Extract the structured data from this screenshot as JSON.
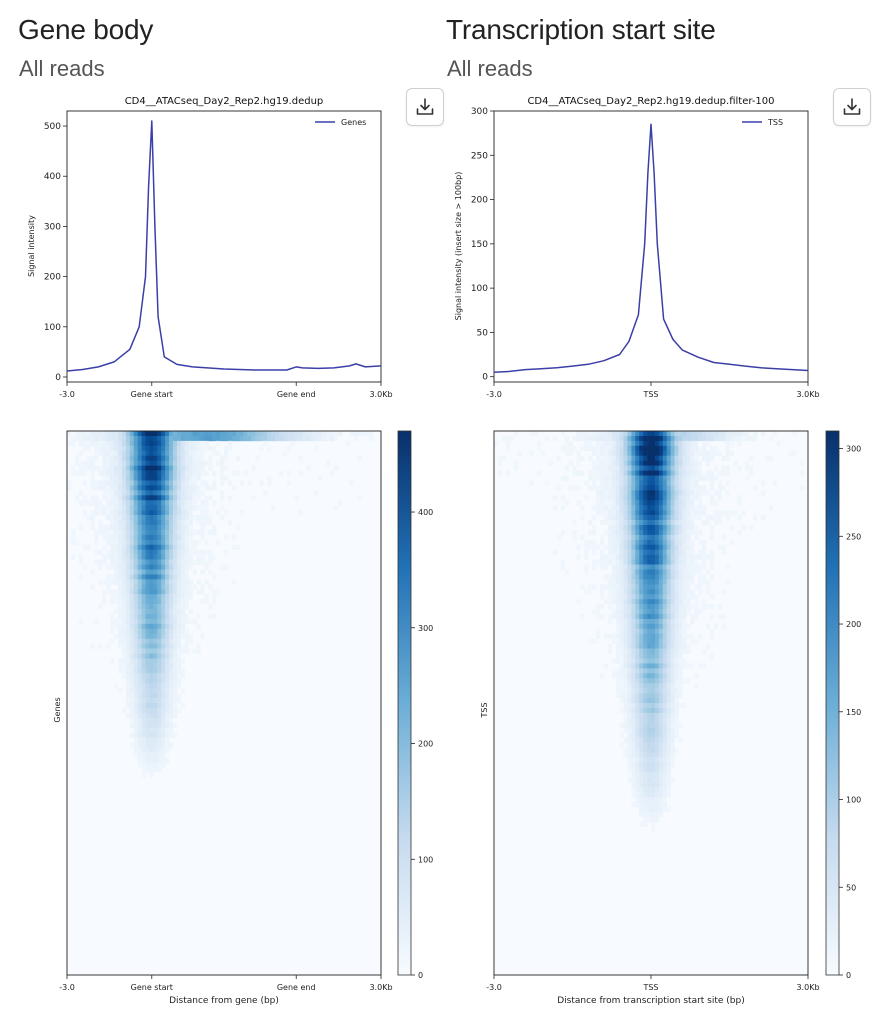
{
  "panels": [
    {
      "title": "Gene body",
      "subtitle": "All reads",
      "download_icon": "download-tray-icon",
      "profile": {
        "title": "CD4__ATACseq_Day2_Rep2.hg19.dedup",
        "ylabel": "Signal intensity",
        "legend": "Genes",
        "ylim": [
          -10,
          530
        ],
        "yticks": [
          "0",
          "100",
          "200",
          "300",
          "400",
          "500"
        ],
        "ytick_values": [
          0,
          100,
          200,
          300,
          400,
          500
        ],
        "xtick_labels": [
          "-3.0",
          "Gene start",
          "Gene end",
          "3.0Kb"
        ],
        "xtick_positions": [
          0,
          0.27,
          0.73,
          1.0
        ],
        "series_color": "#3b3fa8",
        "x": [
          0,
          0.05,
          0.1,
          0.15,
          0.2,
          0.23,
          0.25,
          0.26,
          0.27,
          0.28,
          0.29,
          0.31,
          0.35,
          0.4,
          0.5,
          0.6,
          0.7,
          0.73,
          0.75,
          0.8,
          0.85,
          0.9,
          0.92,
          0.95,
          1.0
        ],
        "y": [
          12,
          15,
          20,
          30,
          55,
          100,
          200,
          380,
          510,
          300,
          120,
          40,
          25,
          20,
          16,
          14,
          14,
          20,
          18,
          17,
          18,
          22,
          26,
          20,
          22
        ]
      },
      "heatmap": {
        "ylabel": "Genes",
        "xlabel": "Distance from gene (bp)",
        "xtick_labels": [
          "-3.0",
          "Gene start",
          "Gene end",
          "3.0Kb"
        ],
        "xtick_positions": [
          0,
          0.27,
          0.73,
          1.0
        ],
        "colorbar_ticks": [
          "0",
          "100",
          "200",
          "300",
          "400"
        ],
        "colorbar_values": [
          0,
          100,
          200,
          300,
          400
        ],
        "colorbar_max": 470,
        "peak_center": 0.27,
        "color_dark": "#08306b",
        "color_light": "#f7fbff"
      }
    },
    {
      "title": "Transcription start site",
      "subtitle": "All reads",
      "download_icon": "download-tray-icon",
      "profile": {
        "title": "CD4__ATACseq_Day2_Rep2.hg19.dedup.filter-100",
        "ylabel": "Signal intensity (insert size > 100bp)",
        "legend": "TSS",
        "ylim": [
          -6,
          300
        ],
        "yticks": [
          "0",
          "50",
          "100",
          "150",
          "200",
          "250",
          "300"
        ],
        "ytick_values": [
          0,
          50,
          100,
          150,
          200,
          250,
          300
        ],
        "xtick_labels": [
          "-3.0",
          "TSS",
          "3.0Kb"
        ],
        "xtick_positions": [
          0,
          0.5,
          1.0
        ],
        "series_color": "#3b3fa8",
        "x": [
          0,
          0.05,
          0.1,
          0.15,
          0.2,
          0.25,
          0.3,
          0.35,
          0.4,
          0.43,
          0.46,
          0.48,
          0.49,
          0.5,
          0.51,
          0.52,
          0.54,
          0.57,
          0.6,
          0.65,
          0.7,
          0.75,
          0.8,
          0.85,
          0.9,
          0.95,
          1.0
        ],
        "y": [
          5,
          6,
          8,
          9,
          10,
          12,
          14,
          18,
          25,
          40,
          70,
          150,
          230,
          285,
          230,
          150,
          65,
          42,
          30,
          22,
          16,
          14,
          12,
          10,
          9,
          8,
          7
        ]
      },
      "heatmap": {
        "ylabel": "TSS",
        "xlabel": "Distance from transcription start site (bp)",
        "xtick_labels": [
          "-3.0",
          "TSS",
          "3.0Kb"
        ],
        "xtick_positions": [
          0,
          0.5,
          1.0
        ],
        "colorbar_ticks": [
          "0",
          "50",
          "100",
          "150",
          "200",
          "250",
          "300"
        ],
        "colorbar_values": [
          0,
          50,
          100,
          150,
          200,
          250,
          300
        ],
        "colorbar_max": 310,
        "peak_center": 0.5,
        "color_dark": "#08306b",
        "color_light": "#f7fbff"
      }
    }
  ]
}
